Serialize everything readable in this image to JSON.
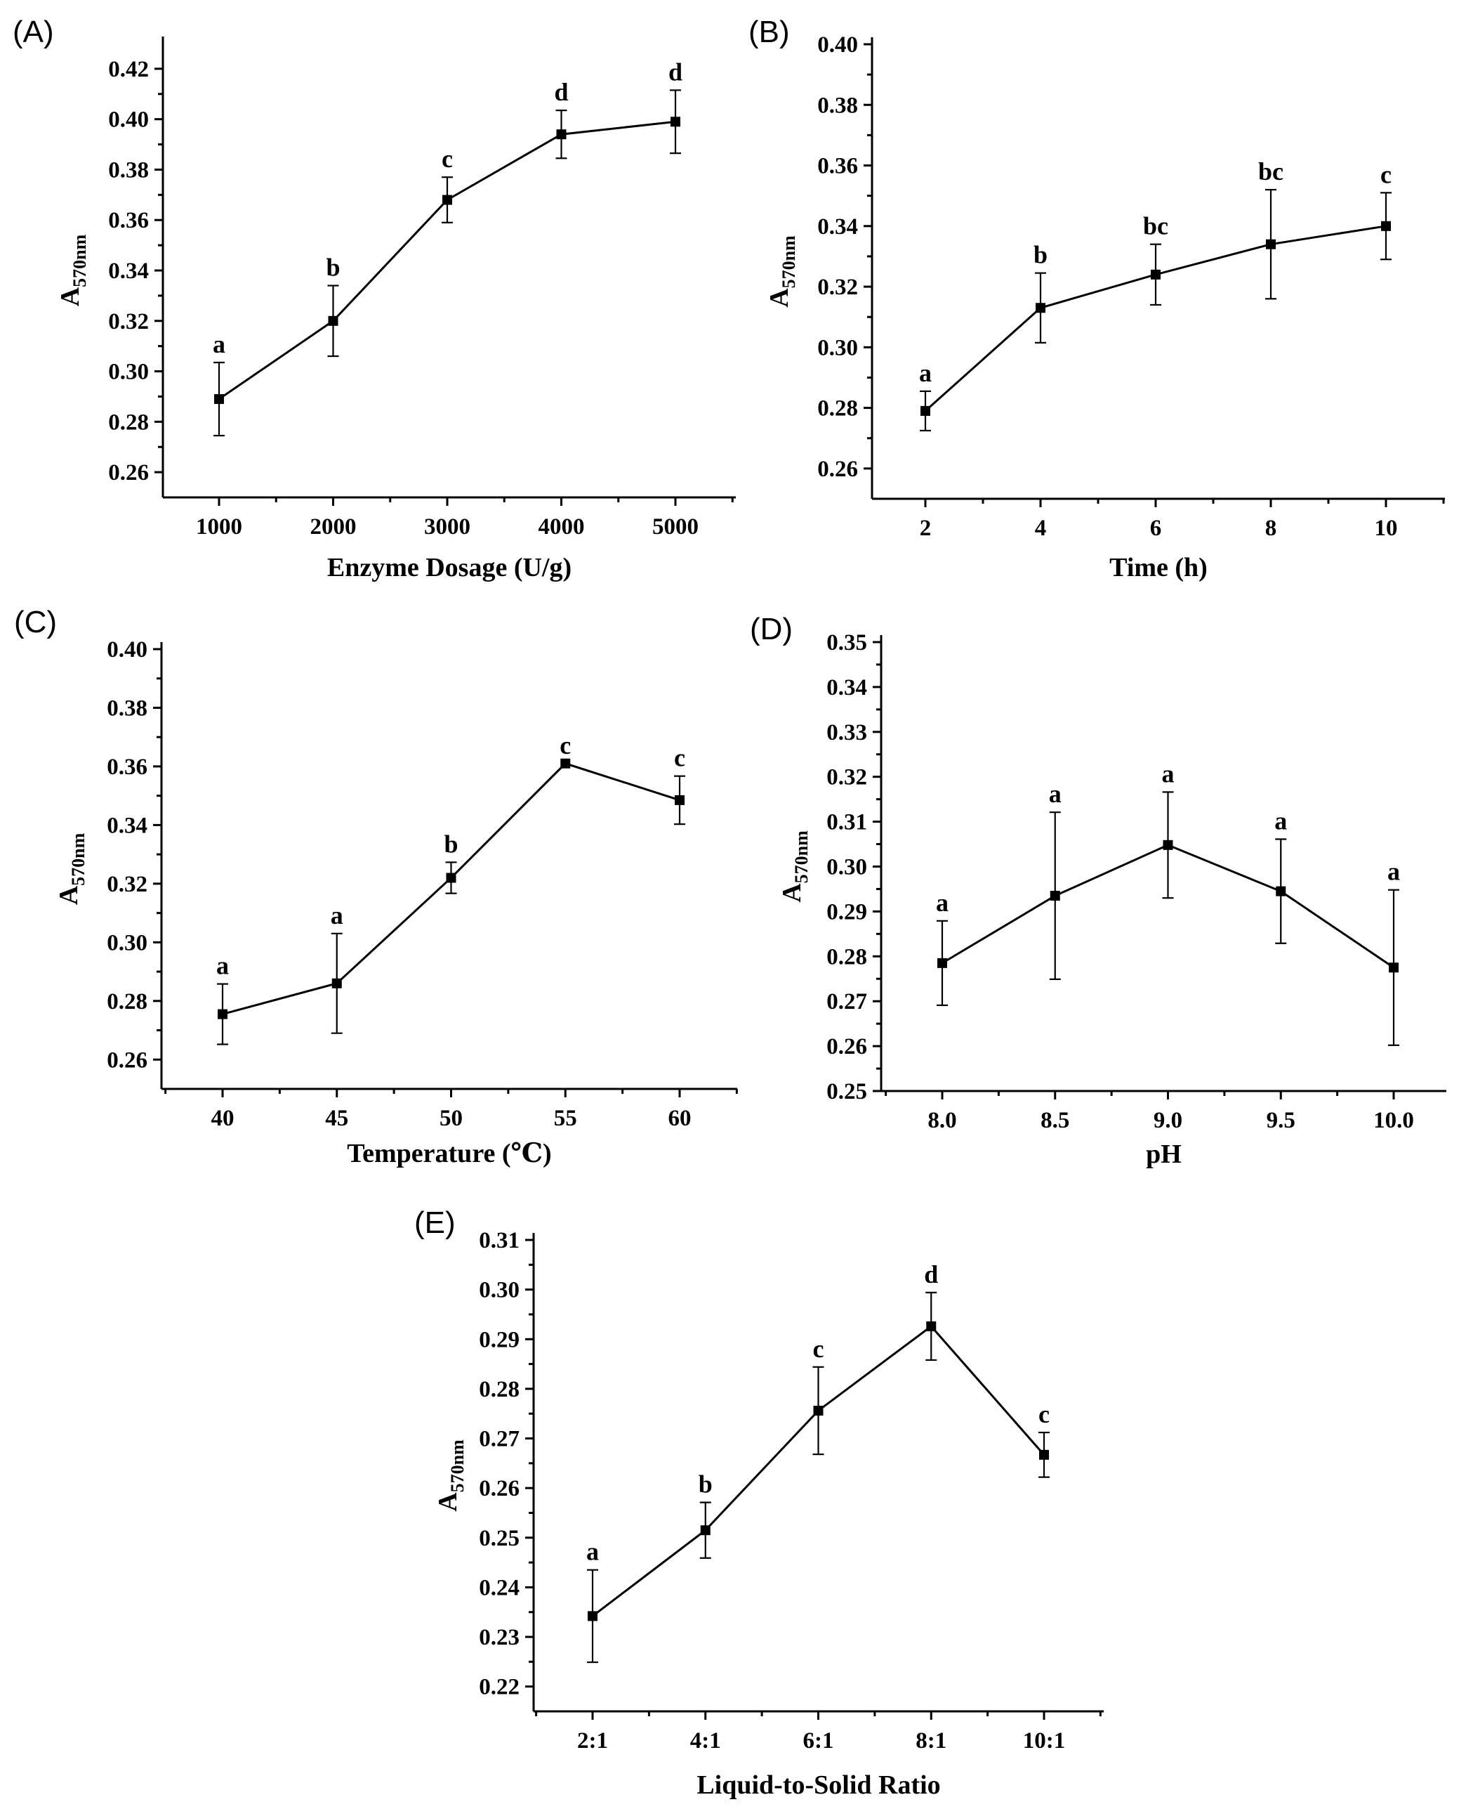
{
  "chart_data": [
    {
      "type": "line",
      "panel": "(A)",
      "xlabel": "Enzyme Dosage (U/g)",
      "ylabel_main": "A",
      "ylabel_sub": "570nm",
      "categories": [
        "1000",
        "2000",
        "3000",
        "4000",
        "5000"
      ],
      "values": [
        0.289,
        0.32,
        0.368,
        0.394,
        0.399
      ],
      "errors": [
        0.0145,
        0.014,
        0.009,
        0.0095,
        0.0125
      ],
      "letters": [
        "a",
        "b",
        "c",
        "d",
        "d"
      ],
      "ylim": [
        0.25,
        0.43
      ],
      "yticks": [
        "0.26",
        "0.28",
        "0.30",
        "0.32",
        "0.34",
        "0.36",
        "0.38",
        "0.40",
        "0.42"
      ]
    },
    {
      "type": "line",
      "panel": "(B)",
      "xlabel": "Time (h)",
      "ylabel_main": "A",
      "ylabel_sub": "570nm",
      "categories": [
        "2",
        "4",
        "6",
        "8",
        "10"
      ],
      "values": [
        0.279,
        0.313,
        0.324,
        0.334,
        0.34
      ],
      "errors": [
        0.0065,
        0.0115,
        0.01,
        0.018,
        0.011
      ],
      "letters": [
        "a",
        "b",
        "bc",
        "bc",
        "c"
      ],
      "ylim": [
        0.25,
        0.4
      ],
      "yticks": [
        "0.26",
        "0.28",
        "0.30",
        "0.32",
        "0.34",
        "0.36",
        "0.38",
        "0.40"
      ]
    },
    {
      "type": "line",
      "panel": "(C)",
      "xlabel": "Temperature (℃)",
      "ylabel_main": "A",
      "ylabel_sub": "570nm",
      "categories": [
        "40",
        "45",
        "50",
        "55",
        "60"
      ],
      "values": [
        0.2755,
        0.286,
        0.322,
        0.361,
        0.3485
      ],
      "errors": [
        0.0103,
        0.017,
        0.0053,
        0.0,
        0.0082
      ],
      "letters": [
        "a",
        "a",
        "b",
        "c",
        "c"
      ],
      "ylim": [
        0.25,
        0.4
      ],
      "yticks": [
        "0.26",
        "0.28",
        "0.30",
        "0.32",
        "0.34",
        "0.36",
        "0.38",
        "0.40"
      ]
    },
    {
      "type": "line",
      "panel": "(D)",
      "xlabel": "pH",
      "ylabel_main": "A",
      "ylabel_sub": "570nm",
      "categories": [
        "8.0",
        "8.5",
        "9.0",
        "9.5",
        "10.0"
      ],
      "values": [
        0.2785,
        0.2935,
        0.3048,
        0.2945,
        0.2775
      ],
      "errors": [
        0.0094,
        0.0186,
        0.0118,
        0.0116,
        0.0173
      ],
      "letters": [
        "a",
        "a",
        "a",
        "a",
        "a"
      ],
      "ylim": [
        0.25,
        0.35
      ],
      "yticks": [
        "0.25",
        "0.26",
        "0.27",
        "0.28",
        "0.29",
        "0.30",
        "0.31",
        "0.32",
        "0.33",
        "0.34",
        "0.35"
      ]
    },
    {
      "type": "line",
      "panel": "(E)",
      "xlabel": "Liquid-to-Solid Ratio",
      "ylabel_main": "A",
      "ylabel_sub": "570nm",
      "categories": [
        "2:1",
        "4:1",
        "6:1",
        "8:1",
        "10:1"
      ],
      "values": [
        0.2342,
        0.2515,
        0.2756,
        0.2926,
        0.2667
      ],
      "errors": [
        0.0093,
        0.0056,
        0.0088,
        0.0068,
        0.0045
      ],
      "letters": [
        "a",
        "b",
        "c",
        "d",
        "c"
      ],
      "ylim": [
        0.215,
        0.31
      ],
      "yticks": [
        "0.22",
        "0.23",
        "0.24",
        "0.25",
        "0.26",
        "0.27",
        "0.28",
        "0.29",
        "0.30",
        "0.31"
      ]
    }
  ]
}
